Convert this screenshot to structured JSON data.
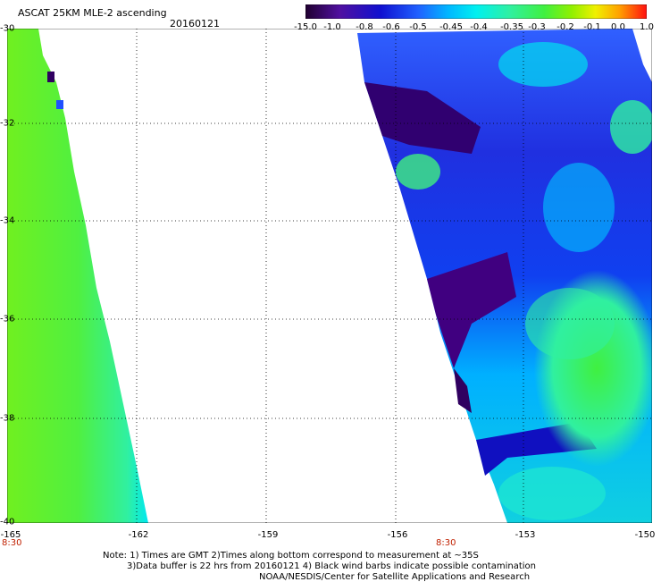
{
  "header": {
    "title": "ASCAT 25KM MLE-2 ascending",
    "date": "20160121"
  },
  "colorbar": {
    "labels": [
      "-15.0",
      "-1.0",
      "-0.8",
      "-0.6",
      "-0.5",
      "-0.45",
      "-0.4",
      "-0.35",
      "-0.3",
      "-0.2",
      "-0.1",
      "0.0",
      "1.0"
    ],
    "colors": [
      "#300060",
      "#5010a0",
      "#1010d0",
      "#2050ff",
      "#00b0ff",
      "#00f0f0",
      "#30f0a0",
      "#40f040",
      "#80f000",
      "#f0f000",
      "#ffa000",
      "#ff4020",
      "#ff0000"
    ]
  },
  "map": {
    "lat_labels": [
      "-30",
      "-32",
      "-34",
      "-36",
      "-38",
      "-40"
    ],
    "lon_labels": [
      "-165",
      "-162",
      "-159",
      "-156",
      "-153",
      "-150"
    ],
    "time_labels": [
      "8:30",
      "8:30"
    ]
  },
  "notes": [
    "Note: 1) Times are GMT 2)Times along bottom correspond to measurement at ~35S",
    "3)Data buffer is 22 hrs from 20160121 4) Black wind barbs indicate possible contamination",
    "NOAA/NESDIS/Center for Satellite Applications and Research"
  ]
}
